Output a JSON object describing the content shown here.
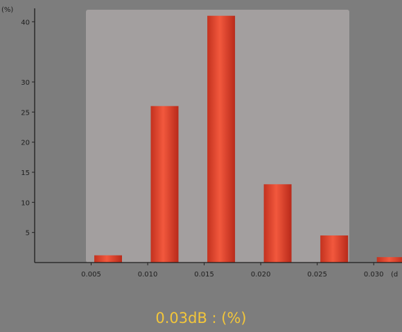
{
  "caption": "0.03dB : (%)",
  "chart_data": {
    "type": "bar",
    "y_unit_label": "(%)",
    "x_unit_label": "(d",
    "x_ticks": [
      "0.005",
      "0.010",
      "0.015",
      "0.020",
      "0.025",
      "0.030"
    ],
    "y_ticks": [
      "5",
      "10",
      "15",
      "20",
      "25",
      "30",
      "40"
    ],
    "xlim": [
      0.0,
      0.0325
    ],
    "ylim": [
      0,
      42
    ],
    "bars": [
      {
        "x": 0.0065,
        "value": 1.2
      },
      {
        "x": 0.0115,
        "value": 26
      },
      {
        "x": 0.0165,
        "value": 41
      },
      {
        "x": 0.0215,
        "value": 13
      },
      {
        "x": 0.0265,
        "value": 4.5
      },
      {
        "x": 0.0315,
        "value": 0.9
      }
    ],
    "colors": {
      "background": "#7d7d7d",
      "plot_area": "#a39f9f",
      "bar_dark": "#c0331f",
      "bar_light": "#f2553a",
      "axis": "#1e1e1e",
      "caption": "#f3c63a"
    }
  }
}
